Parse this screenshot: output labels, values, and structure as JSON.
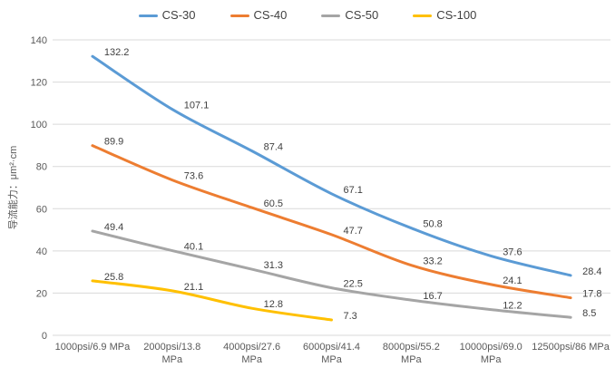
{
  "chart_data": {
    "type": "line",
    "smoothed": true,
    "title": "",
    "ylabel": "导流能力：μm²·cm",
    "xlabel": "",
    "ylim": [
      0,
      140
    ],
    "ytick_step": 20,
    "grid": true,
    "legend_position": "top",
    "markers": false,
    "categories": [
      "1000psi/6.9 MPa",
      "2000psi/13.8 MPa",
      "4000psi/27.6 MPa",
      "6000psi/41.4 MPa",
      "8000psi/55.2 MPa",
      "10000psi/69.0 MPa",
      "12500psi/86 MPa"
    ],
    "category_lines": [
      [
        "1000psi/6.9 MPa"
      ],
      [
        "2000psi/13.8",
        "MPa"
      ],
      [
        "4000psi/27.6",
        "MPa"
      ],
      [
        "6000psi/41.4",
        "MPa"
      ],
      [
        "8000psi/55.2",
        "MPa"
      ],
      [
        "10000psi/69.0",
        "MPa"
      ],
      [
        "12500psi/86 MPa"
      ]
    ],
    "series": [
      {
        "name": "CS-30",
        "color": "#5B9BD5",
        "values": [
          132.2,
          107.1,
          87.4,
          67.1,
          50.8,
          37.6,
          28.4
        ]
      },
      {
        "name": "CS-40",
        "color": "#ED7D31",
        "values": [
          89.9,
          73.6,
          60.5,
          47.7,
          33.2,
          24.1,
          17.8
        ]
      },
      {
        "name": "CS-50",
        "color": "#A5A5A5",
        "values": [
          49.4,
          40.1,
          31.3,
          22.5,
          16.7,
          12.2,
          8.5
        ]
      },
      {
        "name": "CS-100",
        "color": "#FFC000",
        "values": [
          25.8,
          21.1,
          12.8,
          7.3
        ]
      }
    ]
  },
  "colors": {
    "background": "#FFFFFF",
    "gridline": "#D9D9D9",
    "axis_line": "#D9D9D9",
    "tick_text": "#595959",
    "data_label_text": "#404040",
    "legend_text": "#404040"
  }
}
